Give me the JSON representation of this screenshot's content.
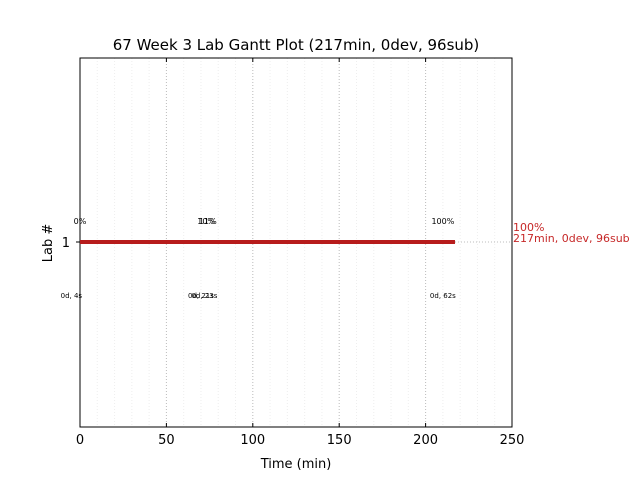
{
  "chart_data": {
    "type": "gantt",
    "title": "67 Week 3 Lab Gantt Plot (217min, 0dev, 96sub)",
    "xlabel": "Time (min)",
    "ylabel": "Lab #",
    "xlim": [
      0,
      250
    ],
    "x_ticks": [
      0,
      50,
      100,
      150,
      200,
      250
    ],
    "x_minor_step": 10,
    "grid": "vertical dotted",
    "rows": [
      {
        "label": "1",
        "start": 0,
        "end": 217,
        "color": "#b71c1c",
        "percent_labels": [
          {
            "x": 0,
            "text": "0%"
          },
          {
            "x": 73,
            "text": "10%"
          },
          {
            "x": 74,
            "text": "11%"
          },
          {
            "x": 210,
            "text": "100%"
          }
        ],
        "time_labels": [
          {
            "x": -5,
            "text": "0d, 4s"
          },
          {
            "x": 70,
            "text": "0d, 21s"
          },
          {
            "x": 72,
            "text": "0d, 23s"
          },
          {
            "x": 210,
            "text": "0d, 62s"
          }
        ],
        "summary_label": {
          "line1": "100%",
          "line2": "217min, 0dev, 96sub",
          "color": "#c62828"
        }
      }
    ]
  }
}
